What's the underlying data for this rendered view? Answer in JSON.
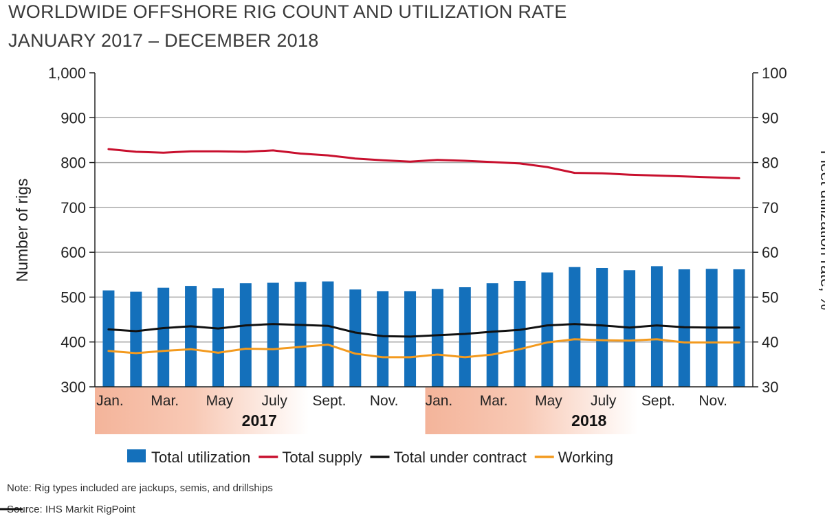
{
  "chart_data": {
    "type": "bar+line",
    "title": "WORLDWIDE OFFSHORE RIG COUNT AND UTILIZATION RATE",
    "subtitle": "JANUARY 2017 – DECEMBER 2018",
    "ylabel": "Number of rigs",
    "y2label": "Fleet utilization rate, %",
    "ylim": [
      300,
      1000
    ],
    "y2lim": [
      30,
      100
    ],
    "yticks": [
      "300",
      "400",
      "500",
      "600",
      "700",
      "800",
      "900",
      "1,000"
    ],
    "y2ticks": [
      "30",
      "40",
      "50",
      "60",
      "70",
      "80",
      "90",
      "100"
    ],
    "grid": true,
    "month_labels": [
      "Jan.",
      "",
      "Mar.",
      "",
      "May",
      "",
      "July",
      "",
      "Sept.",
      "",
      "Nov.",
      "",
      "Jan.",
      "",
      "Mar.",
      "",
      "May",
      "",
      "July",
      "",
      "Sept.",
      "",
      "Nov.",
      ""
    ],
    "years": [
      "2017",
      "2018"
    ],
    "legend_position": "bottom",
    "series": [
      {
        "name": "Total utilization",
        "type": "bar",
        "axis": "right",
        "color": "#1470bb",
        "values": [
          51.5,
          51.2,
          52.1,
          52.5,
          52.0,
          53.1,
          53.2,
          53.4,
          53.5,
          51.7,
          51.3,
          51.3,
          51.8,
          52.2,
          53.1,
          53.6,
          55.5,
          56.7,
          56.5,
          56.0,
          56.9,
          56.2,
          56.3,
          56.2
        ]
      },
      {
        "name": "Total supply",
        "type": "line",
        "axis": "left",
        "color": "#c8102e",
        "values": [
          830,
          824,
          822,
          825,
          825,
          824,
          827,
          820,
          816,
          809,
          805,
          802,
          806,
          804,
          801,
          798,
          790,
          777,
          776,
          773,
          771,
          769,
          767,
          765
        ]
      },
      {
        "name": "Total under contract",
        "type": "line",
        "axis": "left",
        "color": "#111111",
        "values": [
          428,
          424,
          431,
          435,
          430,
          437,
          440,
          438,
          436,
          421,
          413,
          412,
          415,
          418,
          423,
          427,
          437,
          440,
          437,
          432,
          437,
          433,
          432,
          432
        ]
      },
      {
        "name": "Working",
        "type": "line",
        "axis": "left",
        "color": "#f39a1e",
        "values": [
          380,
          375,
          380,
          384,
          376,
          385,
          384,
          389,
          394,
          374,
          366,
          366,
          372,
          366,
          372,
          384,
          399,
          406,
          404,
          403,
          406,
          399,
          399,
          399
        ]
      }
    ],
    "band_color": "#f4b49a"
  },
  "notes": {
    "note": "Note: Rig types included are jackups, semis, and drillships",
    "source": "Source: IHS Markit RigPoint"
  }
}
